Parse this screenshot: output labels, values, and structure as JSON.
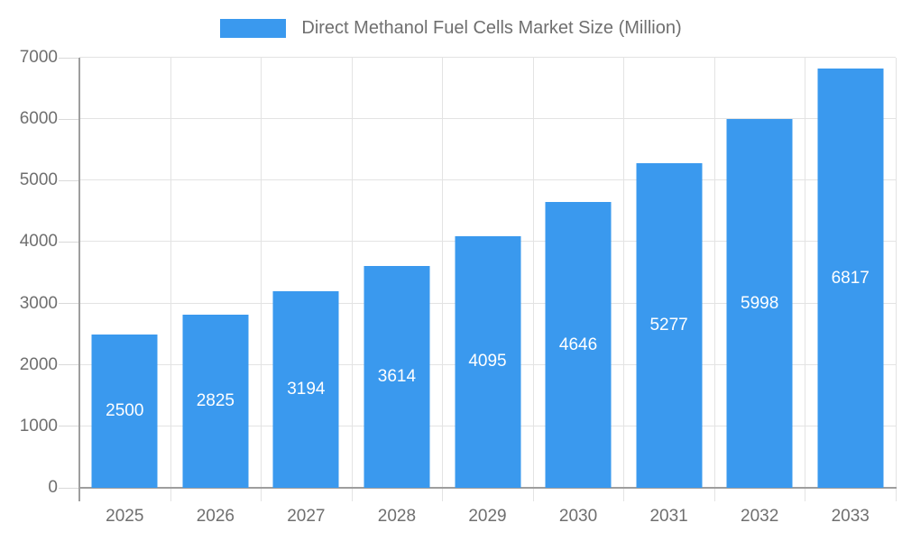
{
  "legend": {
    "label": "Direct Methanol Fuel Cells Market Size (Million)"
  },
  "chart_data": {
    "type": "bar",
    "title": "Direct Methanol Fuel Cells Market Size (Million)",
    "categories": [
      "2025",
      "2026",
      "2027",
      "2028",
      "2029",
      "2030",
      "2031",
      "2032",
      "2033"
    ],
    "values": [
      2500,
      2825,
      3194,
      3614,
      4095,
      4646,
      5277,
      5998,
      6817
    ],
    "xlabel": "",
    "ylabel": "",
    "ylim": [
      0,
      7000
    ],
    "ytick_step": 1000,
    "yticks": [
      0,
      1000,
      2000,
      3000,
      4000,
      5000,
      6000,
      7000
    ],
    "grid": true,
    "legend_position": "top",
    "value_labels": "centered-inside-bars"
  },
  "colors": {
    "bar": "#3A99EE",
    "grid": "#e3e3e3",
    "axis": "#9e9e9e",
    "tick": "#d9d9d9",
    "text": "#6f6f6f",
    "value_label": "#ffffff",
    "background": "#ffffff"
  }
}
